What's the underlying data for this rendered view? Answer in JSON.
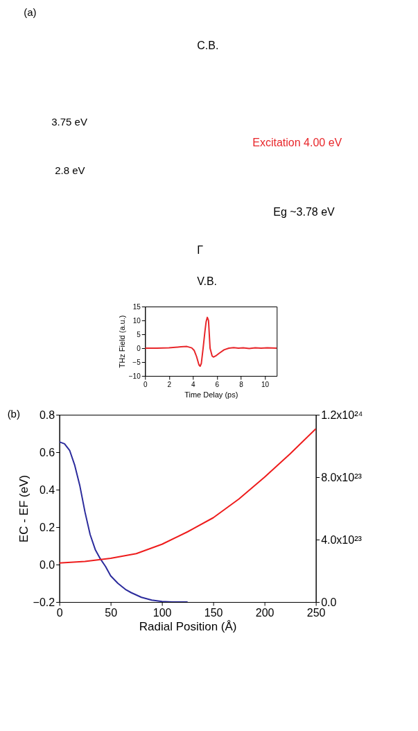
{
  "chart_data": [
    {
      "type": "other",
      "annotations": [
        "(a)",
        "C.B.",
        "3.75 eV",
        "2.8 eV",
        "Excitation 4.00 eV",
        "Eg ~3.78 eV",
        "Γ",
        "V.B."
      ]
    },
    {
      "type": "line",
      "annotations": [
        "(b)"
      ],
      "xlabel": "Radial Position (Å)",
      "ylabel": "EC - EF (eV)",
      "xlim": [
        0,
        250
      ],
      "xticks": [
        0,
        50,
        100,
        150,
        200,
        250
      ],
      "ylim": [
        -0.2,
        0.8
      ],
      "yticks": [
        -0.2,
        {
          "value": 0,
          "label": "0.0"
        },
        0.2,
        0.4,
        0.6,
        0.8
      ],
      "y2lim": [
        0,
        1.2e+24
      ],
      "y2ticks": [
        {
          "value": 0,
          "label": "0.0"
        },
        {
          "value": 4e+23,
          "label": "4.0x10²³"
        },
        {
          "value": 8e+23,
          "label": "8.0x10²³"
        },
        {
          "value": 1.2e+24,
          "label": "1.2x10²⁴"
        }
      ],
      "grid": false,
      "marker": "none",
      "line_style": "solid",
      "series": [
        {
          "color": "#2b2b9c",
          "axis": "y",
          "x": [
            0,
            5,
            10,
            15,
            20,
            25,
            30,
            35,
            40,
            45,
            50,
            57,
            65,
            70,
            80,
            90,
            100,
            110,
            125
          ],
          "values": [
            0.655,
            0.645,
            0.61,
            0.53,
            0.42,
            0.28,
            0.16,
            0.08,
            0.03,
            -0.01,
            -0.06,
            -0.1,
            -0.135,
            -0.15,
            -0.175,
            -0.19,
            -0.197,
            -0.2,
            -0.2
          ]
        },
        {
          "color": "#ee1c1c",
          "axis": "y2",
          "x": [
            0,
            25,
            50,
            75,
            100,
            125,
            150,
            175,
            200,
            225,
            250
          ],
          "values": [
            2.5e+23,
            2.6e+23,
            2.8e+23,
            3.1e+23,
            3.7e+23,
            4.5e+23,
            5.4e+23,
            6.6e+23,
            8e+23,
            9.5e+23,
            1.11e+24
          ]
        }
      ]
    },
    {
      "type": "line",
      "xlabel": "Time Delay (ps)",
      "ylabel": "THz Field (a.u.)",
      "xlim": [
        0,
        11
      ],
      "xticks": [
        0,
        2,
        4,
        6,
        8,
        10
      ],
      "ylim": [
        -10,
        15
      ],
      "yticks": [
        -10,
        -5,
        0,
        5,
        10,
        15
      ],
      "grid": false,
      "marker": "none",
      "line_style": "solid",
      "series": [
        {
          "color": "#e8262a",
          "x": [
            0,
            1,
            2,
            3,
            3.5,
            3.9,
            4.1,
            4.3,
            4.5,
            4.6,
            4.7,
            4.85,
            5.0,
            5.1,
            5.2,
            5.3,
            5.43,
            5.6,
            5.71,
            5.9,
            6.2,
            6.6,
            7.0,
            7.4,
            7.8,
            8.2,
            8.7,
            9.2,
            9.7,
            10.2,
            11
          ],
          "values": [
            0,
            0,
            0.1,
            0.5,
            0.6,
            0.1,
            -0.8,
            -3,
            -6,
            -6.5,
            -5.5,
            0,
            6,
            9.5,
            11.1,
            10,
            0,
            -2.8,
            -3.2,
            -2.8,
            -1.8,
            -0.6,
            0,
            0.2,
            0,
            0.1,
            -0.1,
            0.1,
            0,
            0.1,
            0
          ]
        }
      ]
    }
  ]
}
